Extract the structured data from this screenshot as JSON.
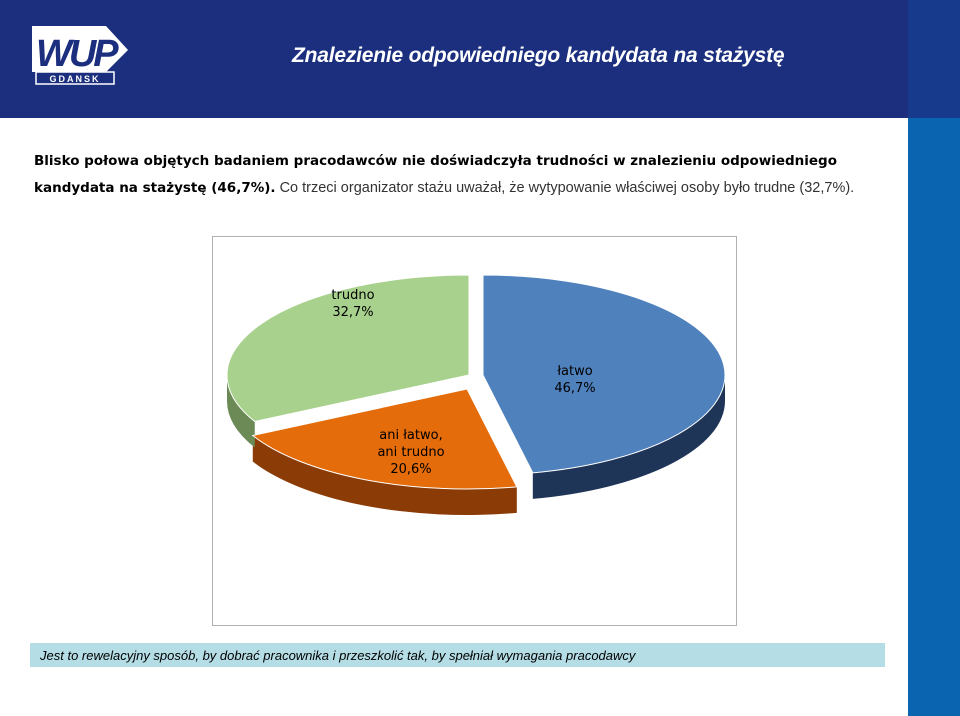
{
  "header": {
    "logo_text": "WUP",
    "logo_subtext": "GDANSK",
    "title": "Znalezienie odpowiedniego kandydata na stażystę"
  },
  "intro": {
    "bold_text_before": "Blisko połowa objętych badaniem pracodawców nie doświadczyła trudności w znalezieniu odpowiedniego kandydata na stażystę ",
    "bold_value": "(46,7%).",
    "normal_text": " Co trzeci organizator stażu uważał, że wytypowanie właściwej osoby było trudne (32,7%)."
  },
  "chart_data": {
    "type": "pie",
    "style": "3d",
    "slices": [
      {
        "label_line1": "łatwo",
        "label_line2": "46,7%",
        "value": 46.7,
        "color": "#4f81bd",
        "side_color": "#1f3558"
      },
      {
        "label_line1": "ani łatwo,",
        "label_line2": "ani trudno",
        "label_line3": "20,6%",
        "value": 20.6,
        "color": "#e46c0a",
        "side_color": "#8a3b06"
      },
      {
        "label_line1": "trudno",
        "label_line2": "32,7%",
        "value": 32.7,
        "color": "#a9d18e",
        "side_color": "#6b8a55"
      }
    ]
  },
  "footer": {
    "text": "Jest to rewelacyjny sposób, by dobrać pracownika i przeszkolić tak, by spełniał wymagania pracodawcy"
  },
  "colors": {
    "header_bg": "#1b2f7e",
    "right_bar": "#0a64b0",
    "footer_bg": "#b5dde6"
  }
}
